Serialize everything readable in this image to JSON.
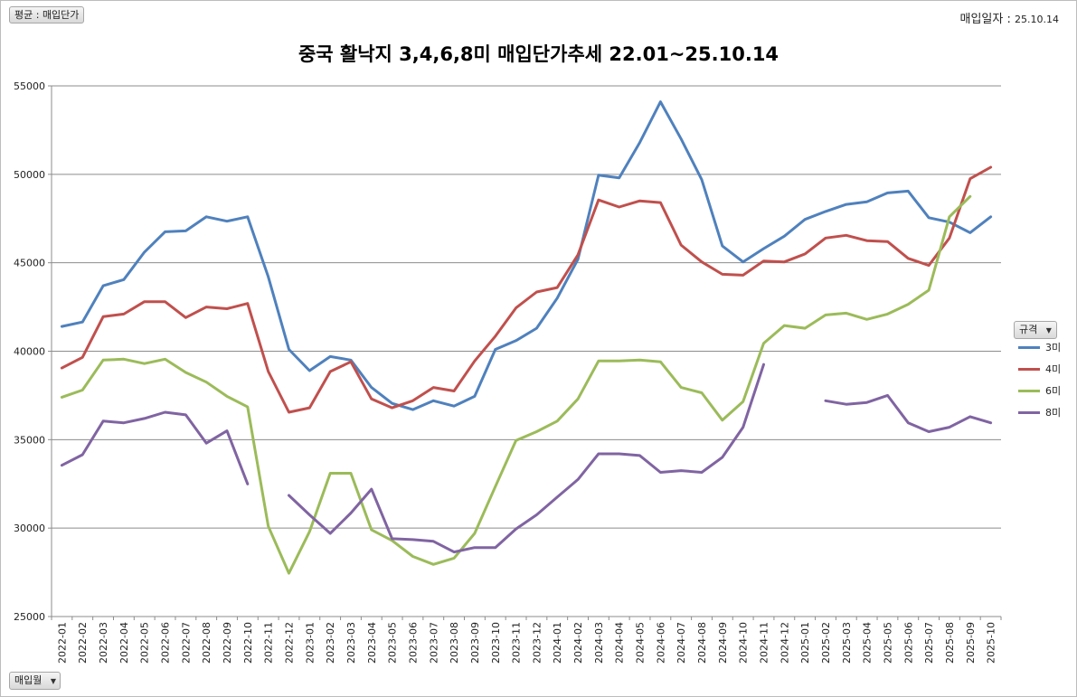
{
  "header": {
    "filter_label": "평균 : 매입단가",
    "date_label": "매입일자 :",
    "date_value": "25.10.14"
  },
  "footer": {
    "axis_field_label": "매입월"
  },
  "legend": {
    "title": "규격"
  },
  "chart_data": {
    "type": "line",
    "title": "중국 활낙지 3,4,6,8미 매입단가추세 22.01~25.10.14",
    "ylim": [
      25000,
      55000
    ],
    "yticks": [
      25000,
      30000,
      35000,
      40000,
      45000,
      50000,
      55000
    ],
    "grid": true,
    "legend_position": "right",
    "categories": [
      "2022-01",
      "2022-02",
      "2022-03",
      "2022-04",
      "2022-05",
      "2022-06",
      "2022-07",
      "2022-08",
      "2022-09",
      "2022-10",
      "2022-11",
      "2022-12",
      "2023-01",
      "2023-02",
      "2023-03",
      "2023-04",
      "2023-05",
      "2023-06",
      "2023-07",
      "2023-08",
      "2023-09",
      "2023-10",
      "2023-11",
      "2023-12",
      "2024-01",
      "2024-02",
      "2024-03",
      "2024-04",
      "2024-05",
      "2024-06",
      "2024-07",
      "2024-08",
      "2024-09",
      "2024-10",
      "2024-11",
      "2024-12",
      "2025-01",
      "2025-02",
      "2025-03",
      "2025-04",
      "2025-05",
      "2025-06",
      "2025-07",
      "2025-08",
      "2025-09",
      "2025-10"
    ],
    "series": [
      {
        "name": "3미",
        "color": "#4f81bd",
        "values": [
          41400,
          41650,
          43700,
          44050,
          45600,
          46750,
          46800,
          47600,
          47350,
          47600,
          44200,
          40100,
          38900,
          39700,
          39500,
          37950,
          37050,
          36700,
          37200,
          36900,
          37450,
          40100,
          40600,
          41300,
          43000,
          45200,
          49950,
          49800,
          51800,
          54100,
          52000,
          49700,
          45950,
          45050,
          45800,
          46500,
          47450,
          47900,
          48300,
          48450,
          48950,
          49050,
          47550,
          47300,
          46700,
          47600
        ]
      },
      {
        "name": "4미",
        "color": "#c0504d",
        "values": [
          39050,
          39650,
          41950,
          42100,
          42800,
          42800,
          41900,
          42500,
          42400,
          42700,
          38850,
          36550,
          36800,
          38850,
          39400,
          37300,
          36800,
          37200,
          37950,
          37750,
          39450,
          40850,
          42450,
          43350,
          43600,
          45450,
          48550,
          48150,
          48500,
          48400,
          46000,
          45050,
          44350,
          44300,
          45100,
          45050,
          45500,
          46400,
          46550,
          46250,
          46200,
          45250,
          44850,
          46400,
          49750,
          50400
        ]
      },
      {
        "name": "6미",
        "color": "#9bbb59",
        "values": [
          37400,
          37800,
          39500,
          39550,
          39300,
          39550,
          38800,
          38250,
          37450,
          36850,
          30100,
          27450,
          29800,
          33100,
          33100,
          29900,
          29300,
          28400,
          27950,
          28300,
          29700,
          32350,
          34950,
          35450,
          36050,
          37300,
          39450,
          39450,
          39500,
          39400,
          37950,
          37650,
          36100,
          37150,
          40450,
          41450,
          41300,
          42050,
          42150,
          41800,
          42100,
          42650,
          43450,
          47600,
          48750,
          null
        ]
      },
      {
        "name": "8미",
        "color": "#8064a2",
        "values": [
          33550,
          34150,
          36050,
          35950,
          36200,
          36550,
          36400,
          34800,
          35500,
          32500,
          null,
          31850,
          30750,
          29700,
          30850,
          32200,
          29400,
          29350,
          29250,
          28650,
          28900,
          28900,
          29950,
          30750,
          31750,
          32750,
          34200,
          34200,
          34100,
          33150,
          33250,
          33150,
          34000,
          35700,
          39250,
          null,
          null,
          37200,
          37000,
          37100,
          37500,
          35950,
          35450,
          35700,
          36300,
          35950
        ]
      }
    ]
  }
}
